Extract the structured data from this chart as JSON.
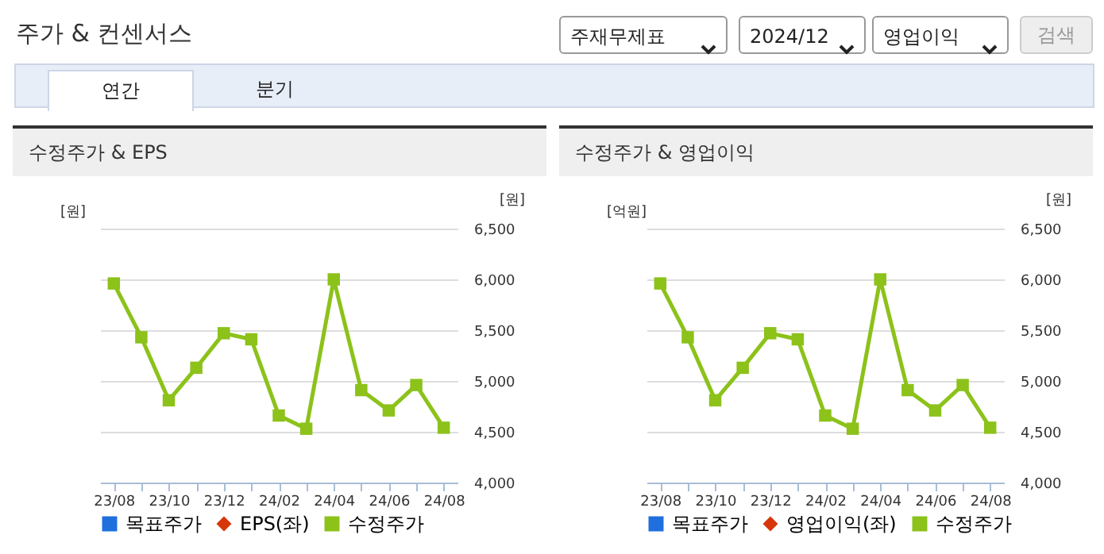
{
  "chart_data": [
    {
      "type": "other",
      "title": "주가 & 컨센서스",
      "annotations": [
        "주재무제표",
        "2024/12",
        "영업이익",
        "검색",
        "연간",
        "분기"
      ]
    },
    {
      "type": "line",
      "title": "수정주가 & EPS",
      "ylabel": "[원]",
      "y2label": "[원]",
      "categories": [
        "23/08",
        null,
        "23/10",
        null,
        "23/12",
        null,
        "24/02",
        null,
        "24/04",
        null,
        "24/06",
        null,
        "24/08"
      ],
      "y2lim": [
        4000,
        6500
      ],
      "y2ticks": [
        {
          "value": 4000,
          "label": "4,000"
        },
        {
          "value": 4500,
          "label": "4,500"
        },
        {
          "value": 5000,
          "label": "5,000"
        },
        {
          "value": 5500,
          "label": "5,500"
        },
        {
          "value": 6000,
          "label": "6,000"
        },
        {
          "value": 6500,
          "label": "6,500"
        }
      ],
      "grid": "y",
      "legend": "bottom",
      "series": [
        {
          "name": "목표주가",
          "type": "scatter",
          "marker": "square",
          "color": "#1f6fde",
          "values": [
            null,
            null,
            null,
            null,
            null,
            null,
            null,
            null,
            null,
            null,
            null,
            null,
            null
          ]
        },
        {
          "name": "EPS(좌)",
          "type": "line",
          "marker": "diamond",
          "color": "#d6360a",
          "values": [
            null,
            null,
            null,
            null,
            null,
            null,
            null,
            null,
            null,
            null,
            null,
            null,
            null
          ]
        },
        {
          "name": "수정주가",
          "type": "line",
          "marker": "square",
          "axis": "y2",
          "color": "#8cc21a",
          "values": [
            5960,
            5430,
            4810,
            5130,
            5470,
            5410,
            4660,
            4530,
            6000,
            4910,
            4710,
            4960,
            4540
          ]
        }
      ]
    },
    {
      "type": "line",
      "title": "수정주가 & 영업이익",
      "ylabel": "[억원]",
      "y2label": "[원]",
      "categories": [
        "23/08",
        null,
        "23/10",
        null,
        "23/12",
        null,
        "24/02",
        null,
        "24/04",
        null,
        "24/06",
        null,
        "24/08"
      ],
      "y2lim": [
        4000,
        6500
      ],
      "y2ticks": [
        {
          "value": 4000,
          "label": "4,000"
        },
        {
          "value": 4500,
          "label": "4,500"
        },
        {
          "value": 5000,
          "label": "5,000"
        },
        {
          "value": 5500,
          "label": "5,500"
        },
        {
          "value": 6000,
          "label": "6,000"
        },
        {
          "value": 6500,
          "label": "6,500"
        }
      ],
      "grid": "y",
      "legend": "bottom",
      "series": [
        {
          "name": "목표주가",
          "type": "scatter",
          "marker": "square",
          "color": "#1f6fde",
          "values": [
            null,
            null,
            null,
            null,
            null,
            null,
            null,
            null,
            null,
            null,
            null,
            null,
            null
          ]
        },
        {
          "name": "영업이익(좌)",
          "type": "line",
          "marker": "diamond",
          "color": "#d6360a",
          "values": [
            null,
            null,
            null,
            null,
            null,
            null,
            null,
            null,
            null,
            null,
            null,
            null,
            null
          ]
        },
        {
          "name": "수정주가",
          "type": "line",
          "marker": "square",
          "axis": "y2",
          "color": "#8cc21a",
          "values": [
            5960,
            5430,
            4810,
            5130,
            5470,
            5410,
            4660,
            4530,
            6000,
            4910,
            4710,
            4960,
            4540
          ]
        }
      ]
    }
  ]
}
